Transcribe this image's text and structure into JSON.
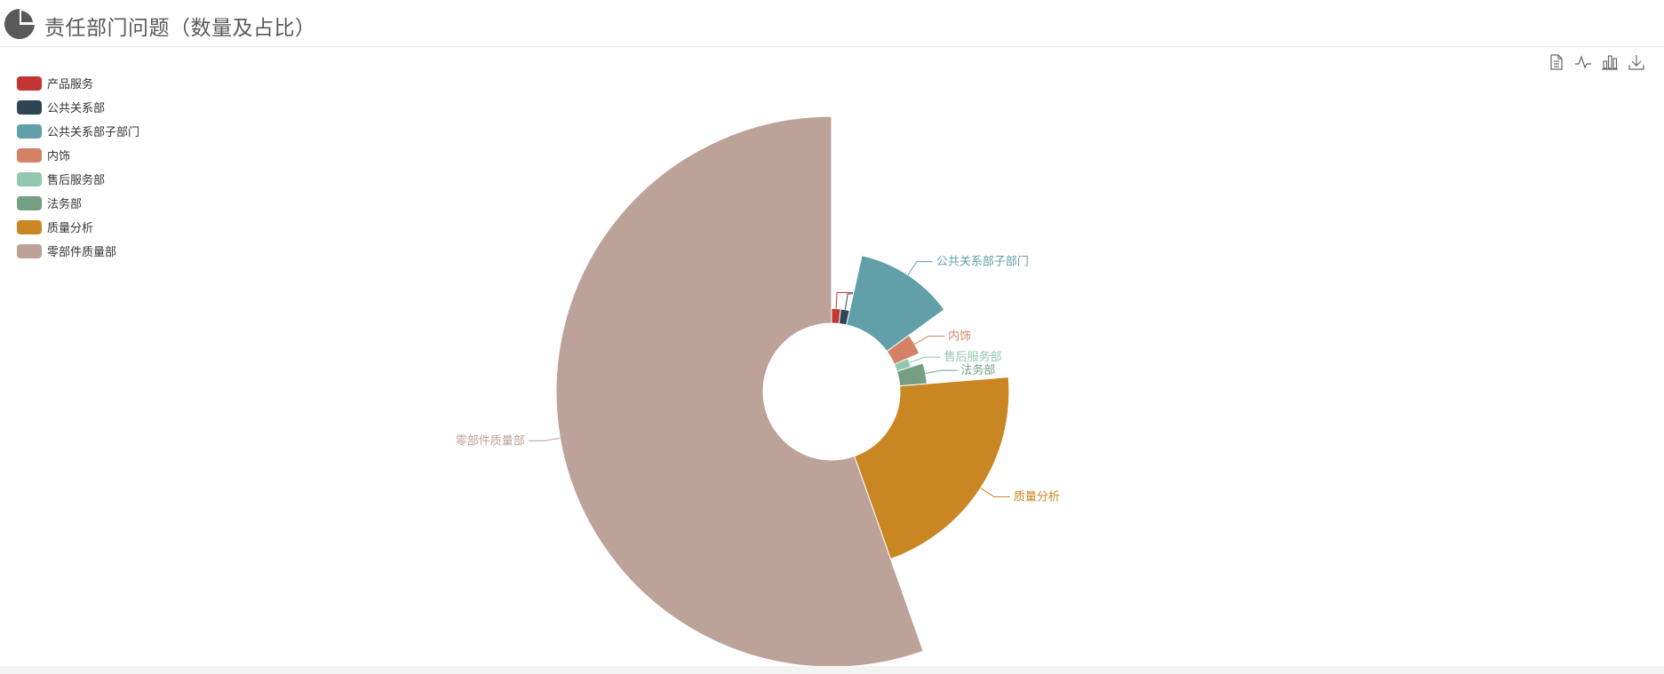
{
  "header": {
    "title": "责任部门问题（数量及占比）",
    "icon": "pie-chart-icon"
  },
  "toolbox": [
    {
      "name": "data-view-icon"
    },
    {
      "name": "line-chart-icon"
    },
    {
      "name": "bar-chart-icon"
    },
    {
      "name": "download-icon"
    }
  ],
  "chart_data": {
    "type": "pie",
    "legend_position": "top-left",
    "categories": [
      "产品服务",
      "公共关系部",
      "公共关系部子部门",
      "内饰",
      "售后服务部",
      "法务部",
      "质量分析",
      "零部件质量部"
    ],
    "values": [
      5,
      5,
      33,
      10,
      5,
      10,
      60,
      159
    ],
    "colors": [
      "#c23531",
      "#2f4554",
      "#61a0a8",
      "#d48265",
      "#91c7ae",
      "#749f83",
      "#ca8622",
      "#bda29a"
    ]
  }
}
